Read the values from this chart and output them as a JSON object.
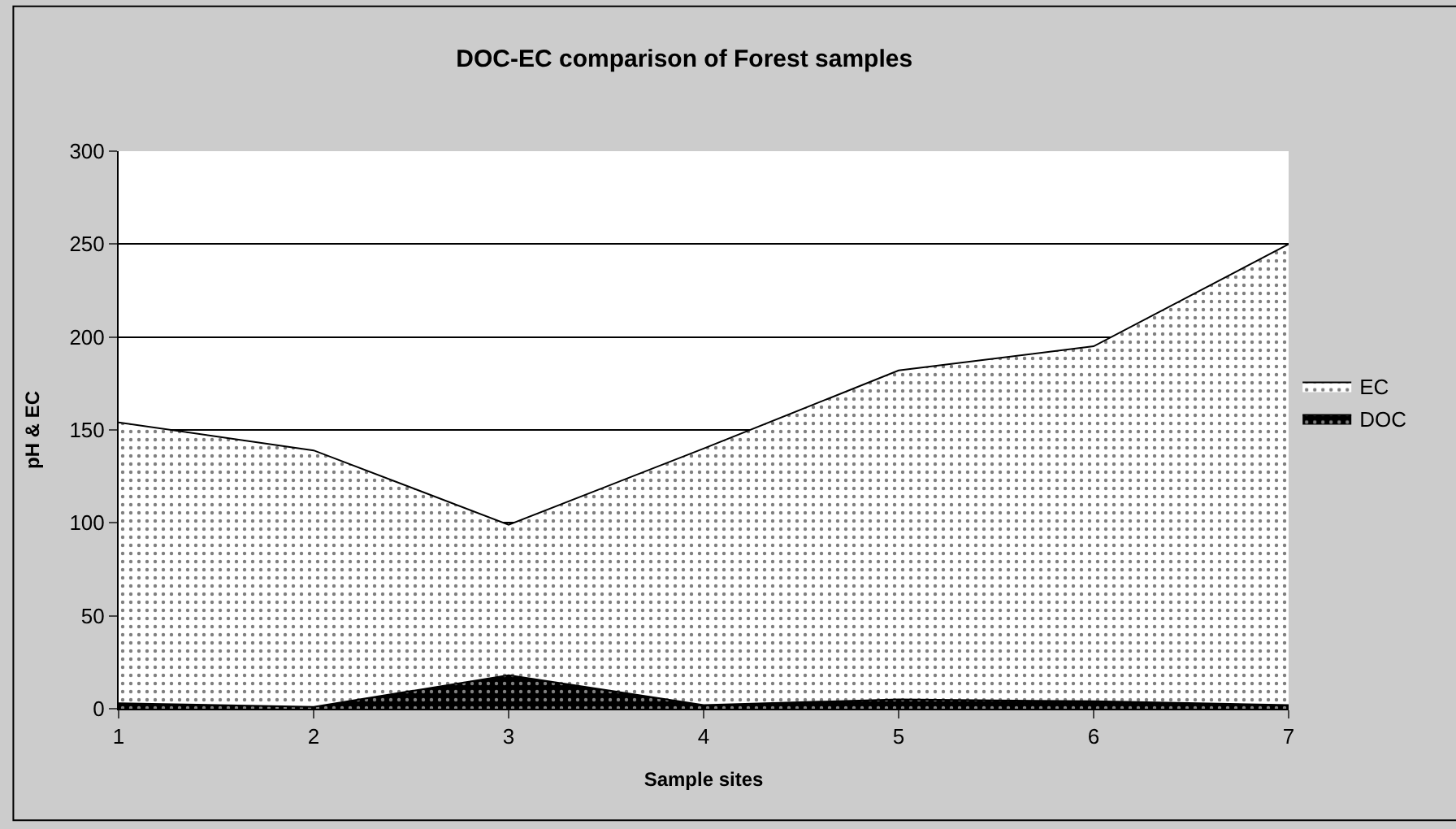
{
  "chart_data": {
    "type": "area",
    "title": "DOC-EC comparison of Forest samples",
    "xlabel": "Sample sites",
    "ylabel": "pH & EC",
    "x": [
      1,
      2,
      3,
      4,
      5,
      6,
      7
    ],
    "series": [
      {
        "name": "EC",
        "color": "#ffffff",
        "values": [
          154,
          139,
          99,
          140,
          182,
          195,
          250
        ]
      },
      {
        "name": "DOC",
        "color": "#000000",
        "values": [
          3,
          1,
          18,
          2,
          5,
          4,
          2
        ]
      }
    ],
    "xlim": [
      1,
      7
    ],
    "xticks": [
      1,
      2,
      3,
      4,
      5,
      6,
      7
    ],
    "ylim": [
      0,
      300
    ],
    "yticks": [
      0,
      50,
      100,
      150,
      200,
      250,
      300
    ],
    "grid": "y",
    "legend": "right"
  }
}
